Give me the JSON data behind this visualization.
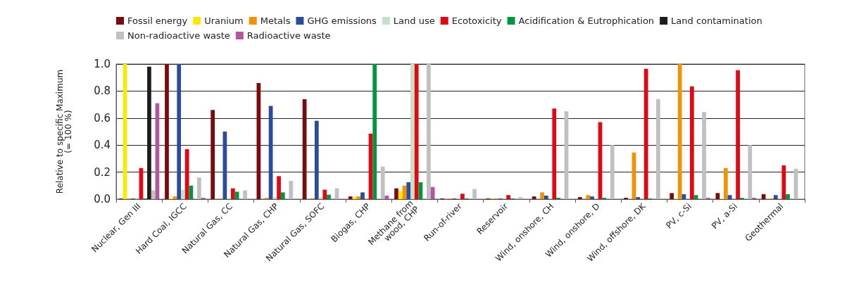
{
  "chart_data": {
    "type": "bar",
    "ylabel": "Relative to specific Maximum\n(= 100 %)",
    "categories": [
      "Nuclear, Gen III",
      "Hard Coal, IGCC",
      "Natural Gas, CC",
      "Natural Gas, CHP",
      "Natural Gas, SOFC",
      "Biogas, CHP",
      "Methane from wood, CHP",
      "Run-of-river",
      "Reservoir",
      "Wind, onshore, CH",
      "Wind, onshore, D",
      "Wind, offshore, DK",
      "PV, c-Si",
      "PV, a-Si",
      "Geothermal"
    ],
    "series": [
      {
        "name": "Fossil energy",
        "color": "#7b0a0f",
        "values": [
          0.005,
          1.0,
          0.66,
          0.86,
          0.74,
          0.02,
          0.08,
          0.005,
          0.005,
          0.02,
          0.015,
          0.01,
          0.045,
          0.045,
          0.037
        ]
      },
      {
        "name": "Uranium",
        "color": "#ffe800",
        "values": [
          1.0,
          0.005,
          0,
          0,
          0,
          0.015,
          0.06,
          0,
          0,
          0,
          0,
          0,
          0.005,
          0.005,
          0
        ]
      },
      {
        "name": "Metals",
        "color": "#f39200",
        "values": [
          0.005,
          0.02,
          0.005,
          0.01,
          0.007,
          0.02,
          0.1,
          0.005,
          0.005,
          0.05,
          0.03,
          0.345,
          1.0,
          0.23,
          0.005
        ]
      },
      {
        "name": "GHG emissions",
        "color": "#2b4c9b",
        "values": [
          0.005,
          1.0,
          0.5,
          0.69,
          0.58,
          0.05,
          0.125,
          0.005,
          0.005,
          0.026,
          0.02,
          0.015,
          0.037,
          0.03,
          0.03
        ]
      },
      {
        "name": "Land use",
        "color": "#c4e2c4",
        "values": [
          0.01,
          0.07,
          0.01,
          0.015,
          0.015,
          null,
          1.0,
          0,
          0,
          0,
          0,
          0,
          null,
          0,
          null
        ]
      },
      {
        "name": "Ecotoxicity",
        "color": "#e30613",
        "values": [
          0.23,
          0.37,
          0.08,
          0.17,
          0.07,
          0.485,
          1.0,
          0.04,
          0.03,
          0.67,
          0.57,
          0.965,
          0.835,
          0.955,
          0.25
        ]
      },
      {
        "name": "Acidification & Eutrophication",
        "color": "#009640",
        "values": [
          0.005,
          0.1,
          0.055,
          0.05,
          0.033,
          1.0,
          0.125,
          0.005,
          0.005,
          0.01,
          0.01,
          0.005,
          0.03,
          0.01,
          0.037
        ]
      },
      {
        "name": "Land contamination",
        "color": "#1d1d1b",
        "values": [
          0.98,
          0,
          0,
          0,
          0,
          0,
          0,
          0,
          0,
          0,
          0,
          0,
          0,
          0,
          0
        ]
      },
      {
        "name": "Non-radioactive waste",
        "color": "#c0c0c0",
        "values": [
          0.065,
          0.16,
          0.065,
          0.135,
          0.08,
          0.24,
          1.0,
          0.075,
          0.015,
          0.65,
          0.4,
          0.74,
          0.645,
          0.4,
          0.225
        ]
      },
      {
        "name": "Radioactive waste",
        "color": "#b5569d",
        "values": [
          0.71,
          0.01,
          0,
          0,
          0,
          0.026,
          0.09,
          0,
          0,
          0,
          0,
          0,
          0.01,
          0.01,
          0
        ]
      }
    ],
    "ylim": [
      0,
      1.0
    ],
    "yticks": [
      {
        "value": 0,
        "label": "0.0"
      },
      {
        "value": 0.2,
        "label": "0.2"
      },
      {
        "value": 0.4,
        "label": "0.4"
      },
      {
        "value": 0.6,
        "label": "0.6"
      },
      {
        "value": 0.8,
        "label": "0.8"
      },
      {
        "value": 1.0,
        "label": "1.0"
      }
    ],
    "grid": "y",
    "legend": "top"
  }
}
